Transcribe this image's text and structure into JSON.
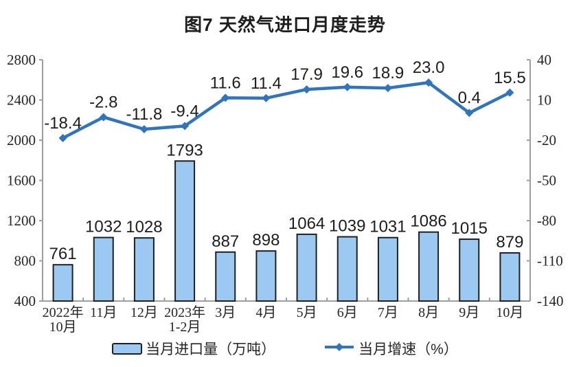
{
  "title": "图7 天然气进口月度走势",
  "chart_data": {
    "type": "combo-bar-line",
    "categories": [
      [
        "2022年",
        "10月"
      ],
      [
        "11月"
      ],
      [
        "12月"
      ],
      [
        "2023年",
        "1-2月"
      ],
      [
        "3月"
      ],
      [
        "4月"
      ],
      [
        "5月"
      ],
      [
        "6月"
      ],
      [
        "7月"
      ],
      [
        "8月"
      ],
      [
        "9月"
      ],
      [
        "10月"
      ]
    ],
    "series": [
      {
        "name": "当月进口量（万吨）",
        "type": "bar",
        "axis": "left",
        "values": [
          761,
          1032,
          1028,
          1793,
          887,
          898,
          1064,
          1039,
          1031,
          1086,
          1015,
          879
        ],
        "labels": [
          "761",
          "1032",
          "1028",
          "1793",
          "887",
          "898",
          "1064",
          "1039",
          "1031",
          "1086",
          "1015",
          "879"
        ],
        "fill": "#9CC9F2",
        "border": "#1f1f1f"
      },
      {
        "name": "当月增速（%）",
        "type": "line",
        "axis": "right",
        "values": [
          -18.4,
          -2.8,
          -11.8,
          -9.4,
          11.6,
          11.4,
          17.9,
          19.6,
          18.9,
          23.0,
          0.4,
          15.5
        ],
        "labels": [
          "-18.4",
          "-2.8",
          "-11.8",
          "-9.4",
          "11.6",
          "11.4",
          "17.9",
          "19.6",
          "18.9",
          "23.0",
          "0.4",
          "15.5"
        ],
        "color": "#2E74C0"
      }
    ],
    "left_axis": {
      "min": 400,
      "max": 2800,
      "ticks": [
        400,
        800,
        1200,
        1600,
        2000,
        2400,
        2800
      ]
    },
    "right_axis": {
      "min": -140,
      "max": 40,
      "ticks": [
        -140,
        -110,
        -80,
        -50,
        -20,
        10,
        40
      ]
    },
    "grid": false,
    "legend_position": "bottom"
  },
  "colors": {
    "axis": "#9e9e9e",
    "text": "#262626",
    "background": "#ffffff"
  }
}
